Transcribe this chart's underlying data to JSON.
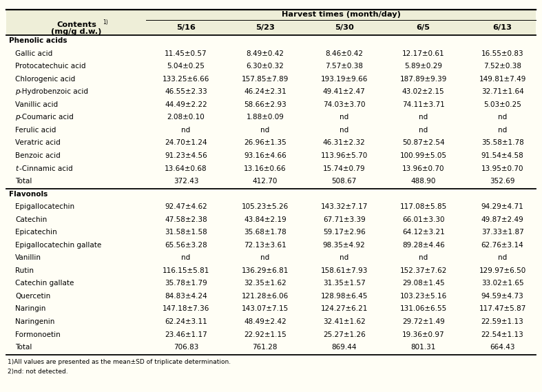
{
  "header_bg": "#f0f0d8",
  "title_row": "Harvest times (month/day)",
  "harvest_cols": [
    "5/16",
    "5/23",
    "5/30",
    "6/5",
    "6/13"
  ],
  "section1_header": "Phenolic acids",
  "section1_rows": [
    [
      "Gallic acid",
      "11.45±0.57",
      "8.49±0.42",
      "8.46±0.42",
      "12.17±0.61",
      "16.55±0.83"
    ],
    [
      "Protocatechuic acid",
      "5.04±0.25",
      "6.30±0.32",
      "7.57±0.38",
      "5.89±0.29",
      "7.52±0.38"
    ],
    [
      "Chlorogenic acid",
      "133.25±6.66",
      "157.85±7.89",
      "193.19±9.66",
      "187.89±9.39",
      "149.81±7.49"
    ],
    [
      "p-Hydrobenzoic acid",
      "46.55±2.33",
      "46.24±2.31",
      "49.41±2.47",
      "43.02±2.15",
      "32.71±1.64"
    ],
    [
      "Vanillic acid",
      "44.49±2.22",
      "58.66±2.93",
      "74.03±3.70",
      "74.11±3.71",
      "5.03±0.25"
    ],
    [
      "p-Coumaric acid",
      "2.08±0.10",
      "1.88±0.09",
      "nd",
      "nd",
      "nd"
    ],
    [
      "Ferulic acid",
      "nd",
      "nd",
      "nd",
      "nd",
      "nd"
    ],
    [
      "Veratric acid",
      "24.70±1.24",
      "26.96±1.35",
      "46.31±2.32",
      "50.87±2.54",
      "35.58±1.78"
    ],
    [
      "Benzoic acid",
      "91.23±4.56",
      "93.16±4.66",
      "113.96±5.70",
      "100.99±5.05",
      "91.54±4.58"
    ],
    [
      "t-Cinnamic acid",
      "13.64±0.68",
      "13.16±0.66",
      "15.74±0.79",
      "13.96±0.70",
      "13.95±0.70"
    ]
  ],
  "section1_total": [
    "Total",
    "372.43",
    "412.70",
    "508.67",
    "488.90",
    "352.69"
  ],
  "section2_header": "Flavonols",
  "section2_rows": [
    [
      "Epigallocatechin",
      "92.47±4.62",
      "105.23±5.26",
      "143.32±7.17",
      "117.08±5.85",
      "94.29±4.71"
    ],
    [
      "Catechin",
      "47.58±2.38",
      "43.84±2.19",
      "67.71±3.39",
      "66.01±3.30",
      "49.87±2.49"
    ],
    [
      "Epicatechin",
      "31.58±1.58",
      "35.68±1.78",
      "59.17±2.96",
      "64.12±3.21",
      "37.33±1.87"
    ],
    [
      "Epigallocatechin gallate",
      "65.56±3.28",
      "72.13±3.61",
      "98.35±4.92",
      "89.28±4.46",
      "62.76±3.14"
    ],
    [
      "Vanillin",
      "nd",
      "nd",
      "nd",
      "nd",
      "nd"
    ],
    [
      "Rutin",
      "116.15±5.81",
      "136.29±6.81",
      "158.61±7.93",
      "152.37±7.62",
      "129.97±6.50"
    ],
    [
      "Catechin gallate",
      "35.78±1.79",
      "32.35±1.62",
      "31.35±1.57",
      "29.08±1.45",
      "33.02±1.65"
    ],
    [
      "Quercetin",
      "84.83±4.24",
      "121.28±6.06",
      "128.98±6.45",
      "103.23±5.16",
      "94.59±4.73"
    ],
    [
      "Naringin",
      "147.18±7.36",
      "143.07±7.15",
      "124.27±6.21",
      "131.06±6.55",
      "117.47±5.87"
    ],
    [
      "Naringenin",
      "62.24±3.11",
      "48.49±2.42",
      "32.41±1.62",
      "29.72±1.49",
      "22.59±1.13"
    ],
    [
      "Formonoetin",
      "23.46±1.17",
      "22.92±1.15",
      "25.27±1.26",
      "19.36±0.97",
      "22.54±1.13"
    ]
  ],
  "section2_total": [
    "Total",
    "706.83",
    "761.28",
    "869.44",
    "801.31",
    "664.43"
  ],
  "footnote1": "1)All values are presented as the mean±SD of triplicate determination.",
  "footnote2": "2)nd: not detected.",
  "bg_color": "#fffef5",
  "header_color": "#eeeed8"
}
